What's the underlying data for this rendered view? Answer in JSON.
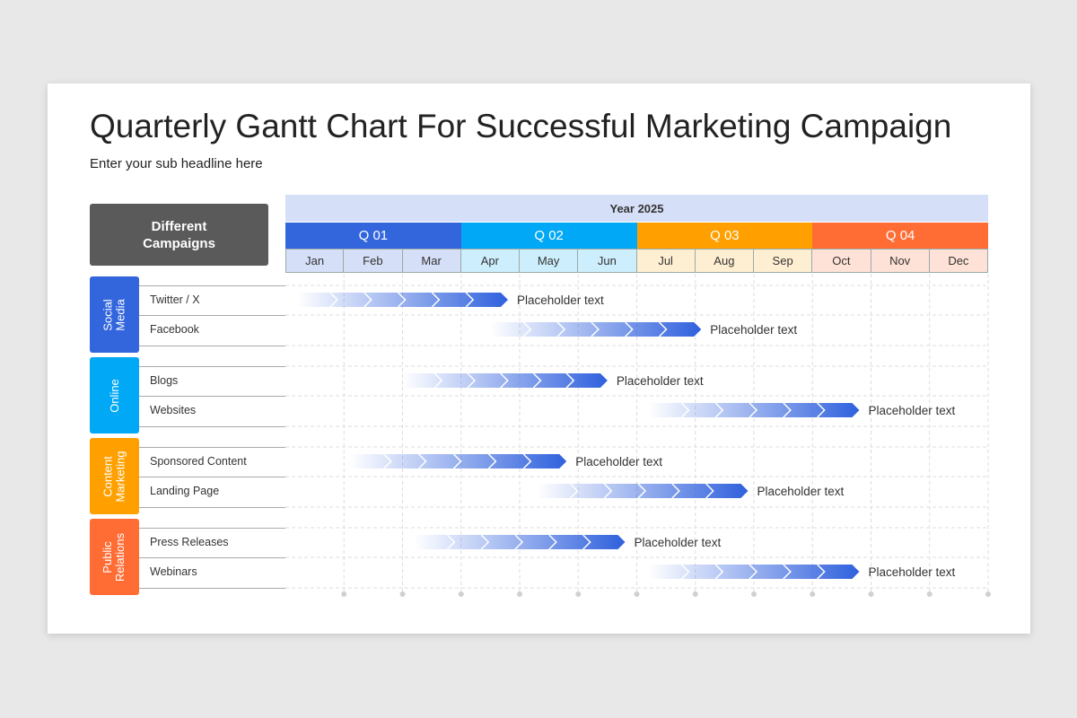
{
  "title": "Quarterly Gantt Chart For Successful Marketing Campaign",
  "subtitle": "Enter your sub headline here",
  "header_box": "Different Campaigns",
  "chart_data": {
    "type": "gantt",
    "year_label": "Year 2025",
    "quarters": [
      {
        "label": "Q 01",
        "color": "#3366dd",
        "month_bg": "#d5dff7"
      },
      {
        "label": "Q 02",
        "color": "#00a8f5",
        "month_bg": "#cdeefd"
      },
      {
        "label": "Q 03",
        "color": "#ffa000",
        "month_bg": "#ffefd2"
      },
      {
        "label": "Q 04",
        "color": "#ff6d35",
        "month_bg": "#ffe2d7"
      }
    ],
    "months": [
      "Jan",
      "Feb",
      "Mar",
      "Apr",
      "May",
      "Jun",
      "Jul",
      "Aug",
      "Sep",
      "Oct",
      "Nov",
      "Dec"
    ],
    "bar_color": "#2f60dd",
    "groups": [
      {
        "name": "Social Media",
        "lines": [
          "Social",
          "Media"
        ],
        "color": "#3366dd",
        "tasks": [
          {
            "name": "Twitter  / X",
            "start": 0.2,
            "end": 3.8,
            "label": "Placeholder text"
          },
          {
            "name": "Facebook",
            "start": 3.5,
            "end": 7.1,
            "label": "Placeholder text"
          }
        ]
      },
      {
        "name": "Online",
        "lines": [
          "Online"
        ],
        "color": "#00a8f5",
        "tasks": [
          {
            "name": "Blogs",
            "start": 2.0,
            "end": 5.5,
            "label": "Placeholder text"
          },
          {
            "name": "Websites",
            "start": 6.2,
            "end": 9.8,
            "label": "Placeholder text"
          }
        ]
      },
      {
        "name": "Content Marketing",
        "lines": [
          "Content",
          "Marketing"
        ],
        "color": "#ffa000",
        "tasks": [
          {
            "name": "Sponsored Content",
            "start": 1.1,
            "end": 4.8,
            "label": "Placeholder text"
          },
          {
            "name": "Landing Page",
            "start": 4.3,
            "end": 7.9,
            "label": "Placeholder text"
          }
        ]
      },
      {
        "name": "Public Relations",
        "lines": [
          "Public",
          "Relations"
        ],
        "color": "#ff6d35",
        "tasks": [
          {
            "name": "Press Releases",
            "start": 2.2,
            "end": 5.8,
            "label": "Placeholder text"
          },
          {
            "name": "Webinars",
            "start": 6.2,
            "end": 9.8,
            "label": "Placeholder text"
          }
        ]
      }
    ]
  }
}
